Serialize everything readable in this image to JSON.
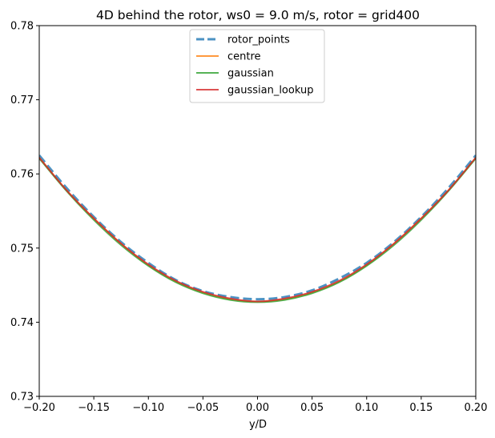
{
  "chart_data": {
    "type": "line",
    "title": "4D behind the rotor, ws0 = 9.0 m/s, rotor = grid400",
    "xlabel": "y/D",
    "ylabel": "",
    "xlim": [
      -0.2,
      0.2
    ],
    "ylim": [
      0.73,
      0.78
    ],
    "xticks": [
      -0.2,
      -0.15,
      -0.1,
      -0.05,
      0.0,
      0.05,
      0.1,
      0.15,
      0.2
    ],
    "xtick_labels": [
      "−0.20",
      "−0.15",
      "−0.10",
      "−0.05",
      "0.00",
      "0.05",
      "0.10",
      "0.15",
      "0.20"
    ],
    "yticks": [
      0.73,
      0.74,
      0.75,
      0.76,
      0.77,
      0.78
    ],
    "ytick_labels": [
      "0.73",
      "0.74",
      "0.75",
      "0.76",
      "0.77",
      "0.78"
    ],
    "grid": false,
    "legend_position": "upper-center",
    "series": [
      {
        "name": "rotor_points",
        "style": "dashed",
        "color": "#1f77b4",
        "x": [
          -0.2,
          -0.175,
          -0.15,
          -0.125,
          -0.1,
          -0.075,
          -0.05,
          -0.025,
          0.0,
          0.025,
          0.05,
          0.075,
          0.1,
          0.125,
          0.15,
          0.175,
          0.2
        ],
        "y": [
          0.7625,
          0.7581,
          0.7542,
          0.7508,
          0.748,
          0.7457,
          0.7442,
          0.7434,
          0.7431,
          0.7434,
          0.7443,
          0.7459,
          0.748,
          0.7508,
          0.7542,
          0.7581,
          0.7625
        ]
      },
      {
        "name": "centre",
        "style": "solid",
        "color": "#ff7f0e",
        "x": [
          -0.2,
          -0.175,
          -0.15,
          -0.125,
          -0.1,
          -0.075,
          -0.05,
          -0.025,
          0.0,
          0.025,
          0.05,
          0.075,
          0.1,
          0.125,
          0.15,
          0.175,
          0.2
        ],
        "y": [
          0.7622,
          0.7578,
          0.754,
          0.7506,
          0.7477,
          0.7455,
          0.744,
          0.7431,
          0.7428,
          0.7431,
          0.744,
          0.7455,
          0.7477,
          0.7506,
          0.754,
          0.7578,
          0.7622
        ]
      },
      {
        "name": "gaussian",
        "style": "solid",
        "color": "#2ca02c",
        "x": [
          -0.2,
          -0.175,
          -0.15,
          -0.125,
          -0.1,
          -0.075,
          -0.05,
          -0.025,
          0.0,
          0.025,
          0.05,
          0.075,
          0.1,
          0.125,
          0.15,
          0.175,
          0.2
        ],
        "y": [
          0.7621,
          0.7577,
          0.7538,
          0.7504,
          0.7476,
          0.7454,
          0.7439,
          0.743,
          0.7427,
          0.743,
          0.7439,
          0.7454,
          0.7476,
          0.7504,
          0.7538,
          0.7577,
          0.7621
        ]
      },
      {
        "name": "gaussian_lookup",
        "style": "solid",
        "color": "#d62728",
        "x": [
          -0.2,
          -0.175,
          -0.15,
          -0.125,
          -0.1,
          -0.075,
          -0.05,
          -0.025,
          0.0,
          0.025,
          0.05,
          0.075,
          0.1,
          0.125,
          0.15,
          0.175,
          0.2
        ],
        "y": [
          0.7622,
          0.7578,
          0.754,
          0.7506,
          0.7478,
          0.7456,
          0.7441,
          0.7432,
          0.7428,
          0.7432,
          0.7441,
          0.7456,
          0.7478,
          0.7506,
          0.754,
          0.7578,
          0.7622
        ]
      }
    ]
  }
}
